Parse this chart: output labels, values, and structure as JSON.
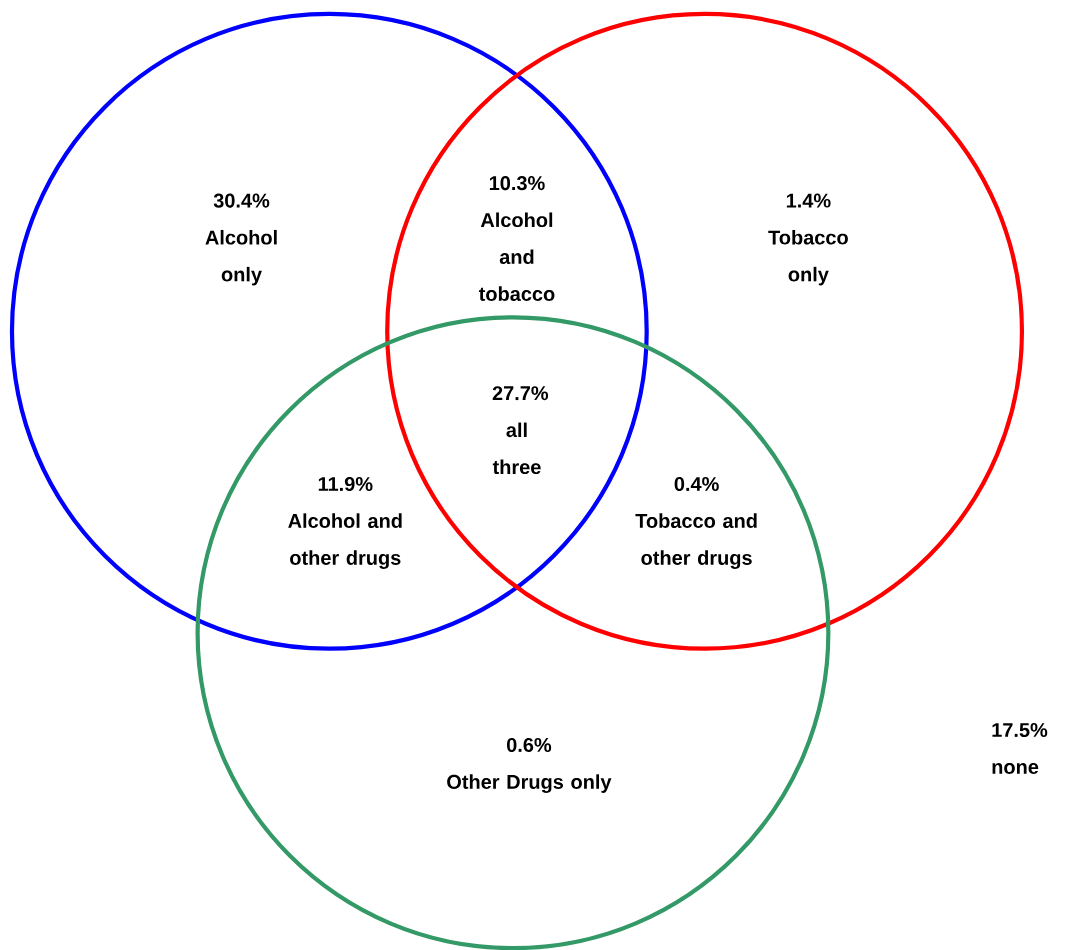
{
  "chart_data": {
    "type": "other",
    "categories": [
      "Alcohol only",
      "Alcohol and tobacco",
      "Tobacco only",
      "all three",
      "Alcohol and other drugs",
      "Tobacco and other drugs",
      "Other Drugs only",
      "none"
    ],
    "values": [
      30.4,
      10.3,
      1.4,
      27.7,
      11.9,
      0.4,
      0.6,
      17.5
    ],
    "value_labels": [
      "30.4%",
      "10.3%",
      "1.4%",
      "27.7%",
      "11.9%",
      "0.4%",
      "0.6%",
      "17.5%"
    ]
  }
}
